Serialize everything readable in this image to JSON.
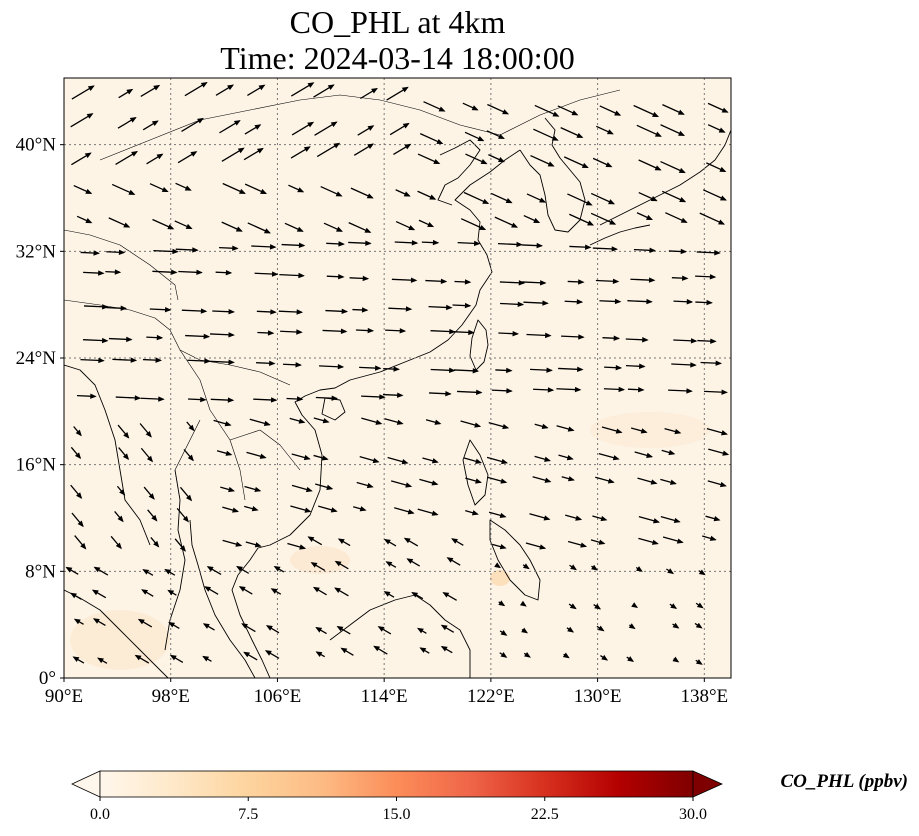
{
  "title": {
    "line1": "CO_PHL at 4km",
    "line2": "Time: 2024-03-14 18:00:00"
  },
  "map": {
    "lon_range": [
      90,
      140
    ],
    "lat_range": [
      0,
      45
    ],
    "lon_ticks": [
      {
        "value": 90,
        "label": "90°E"
      },
      {
        "value": 98,
        "label": "98°E"
      },
      {
        "value": 106,
        "label": "106°E"
      },
      {
        "value": 114,
        "label": "114°E"
      },
      {
        "value": 122,
        "label": "122°E"
      },
      {
        "value": 130,
        "label": "130°E"
      },
      {
        "value": 138,
        "label": "138°E"
      }
    ],
    "lat_ticks": [
      {
        "value": 0,
        "label": "0°"
      },
      {
        "value": 8,
        "label": "8°N"
      },
      {
        "value": 16,
        "label": "16°N"
      },
      {
        "value": 24,
        "label": "24°N"
      },
      {
        "value": 32,
        "label": "32°N"
      },
      {
        "value": 40,
        "label": "40°N"
      }
    ],
    "gridlines": true,
    "field_color": "#fdf4e6",
    "land_line_color": "#000000",
    "vector_color": "#000000"
  },
  "colorbar": {
    "label": "CO_PHL (ppbv)",
    "min": 0,
    "max": 30,
    "ticks": [
      {
        "value": 0,
        "label": "0.0"
      },
      {
        "value": 7.5,
        "label": "7.5"
      },
      {
        "value": 15,
        "label": "15.0"
      },
      {
        "value": 22.5,
        "label": "22.5"
      },
      {
        "value": 30,
        "label": "30.0"
      }
    ],
    "colormap": [
      "#fff7ec",
      "#fee8c8",
      "#fdd49e",
      "#fdbb84",
      "#fc8d59",
      "#ef6548",
      "#d7301f",
      "#b30000",
      "#7f0000"
    ],
    "extend": "both"
  }
}
